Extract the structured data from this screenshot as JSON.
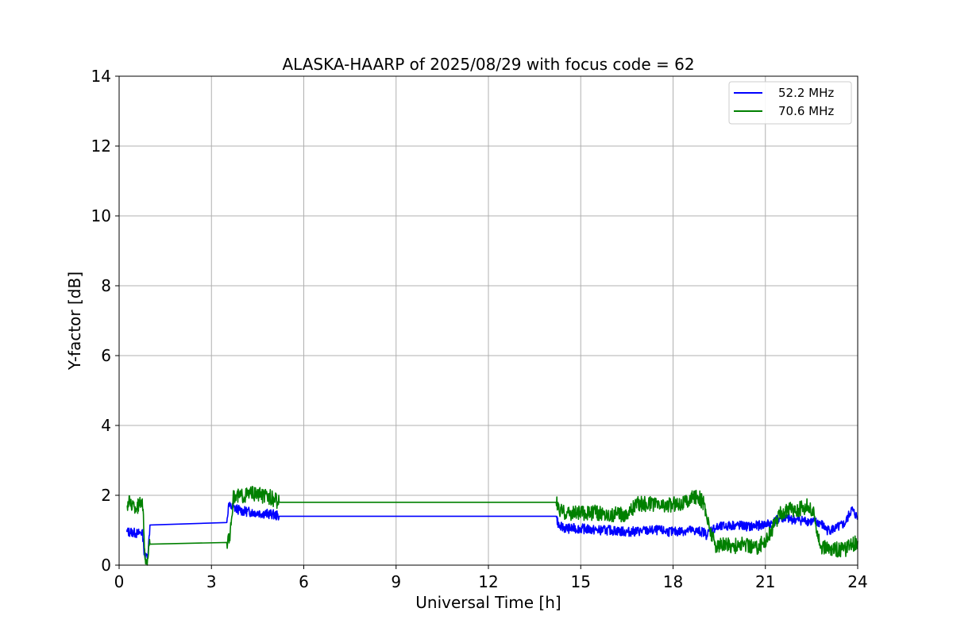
{
  "chart_data": {
    "type": "line",
    "title": "ALASKA-HAARP of 2025/08/29 with focus code = 62",
    "xlabel": "Universal Time [h]",
    "ylabel": "Y-factor [dB]",
    "xlim": [
      0,
      24
    ],
    "ylim": [
      0,
      14
    ],
    "xticks": [
      0,
      3,
      6,
      9,
      12,
      15,
      18,
      21,
      24
    ],
    "yticks": [
      0,
      2,
      4,
      6,
      8,
      10,
      12,
      14
    ],
    "grid": true,
    "legend_position": "top-right",
    "series": [
      {
        "name": "52.2 MHz",
        "color": "#0000ff",
        "x": [
          0.25,
          0.4,
          0.6,
          0.75,
          0.78,
          0.8,
          0.82,
          0.85,
          0.9,
          0.95,
          1.0,
          3.5,
          3.55,
          3.7,
          4.0,
          4.5,
          5.0,
          5.2,
          14.2,
          14.3,
          14.6,
          15.0,
          15.5,
          16.0,
          16.5,
          17.0,
          17.5,
          18.0,
          18.5,
          19.0,
          19.1,
          19.2,
          19.3,
          19.6,
          20.0,
          20.5,
          20.9,
          21.2,
          21.5,
          22.0,
          22.5,
          22.8,
          23.0,
          23.3,
          23.6,
          23.8,
          24.0
        ],
        "y": [
          0.95,
          0.95,
          0.9,
          0.95,
          0.75,
          0.5,
          0.35,
          0.2,
          0.3,
          0.45,
          1.15,
          1.22,
          1.7,
          1.65,
          1.55,
          1.5,
          1.45,
          1.4,
          1.4,
          1.1,
          1.05,
          1.05,
          1.0,
          1.0,
          0.95,
          0.98,
          1.0,
          0.95,
          1.0,
          0.95,
          0.85,
          1.0,
          1.05,
          1.1,
          1.15,
          1.1,
          1.15,
          1.2,
          1.35,
          1.3,
          1.25,
          1.2,
          1.0,
          1.05,
          1.2,
          1.6,
          1.35
        ]
      },
      {
        "name": "70.6 MHz",
        "color": "#008000",
        "x": [
          0.25,
          0.35,
          0.5,
          0.65,
          0.75,
          0.78,
          0.8,
          0.82,
          0.85,
          0.9,
          0.95,
          1.0,
          3.5,
          3.6,
          3.65,
          3.7,
          3.75,
          4.0,
          4.3,
          4.6,
          4.9,
          5.2,
          14.2,
          14.3,
          14.6,
          15.0,
          15.5,
          16.0,
          16.4,
          16.6,
          16.8,
          17.2,
          17.6,
          18.0,
          18.4,
          18.8,
          19.0,
          19.2,
          19.4,
          19.7,
          20.0,
          20.3,
          20.7,
          21.0,
          21.2,
          21.5,
          21.8,
          22.1,
          22.4,
          22.6,
          22.8,
          23.2,
          23.6,
          24.0
        ],
        "y": [
          1.7,
          1.8,
          1.65,
          1.7,
          1.9,
          1.6,
          1.0,
          0.5,
          0.2,
          0.1,
          0.3,
          0.6,
          0.65,
          0.7,
          1.3,
          1.9,
          1.95,
          2.0,
          2.05,
          2.0,
          1.95,
          1.8,
          1.8,
          1.55,
          1.5,
          1.5,
          1.5,
          1.45,
          1.45,
          1.55,
          1.75,
          1.75,
          1.7,
          1.75,
          1.8,
          2.0,
          1.75,
          1.0,
          0.55,
          0.6,
          0.55,
          0.6,
          0.5,
          0.7,
          1.0,
          1.5,
          1.6,
          1.6,
          1.7,
          1.4,
          0.5,
          0.45,
          0.45,
          0.7
        ]
      }
    ]
  }
}
